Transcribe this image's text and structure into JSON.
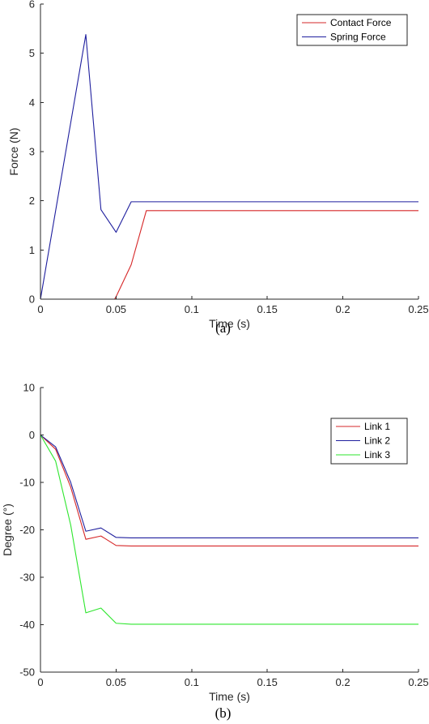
{
  "chart_data": [
    {
      "type": "line",
      "xlabel": "Time (s)",
      "ylabel": "Force (N)",
      "xlim": [
        0,
        0.25
      ],
      "ylim": [
        0,
        6
      ],
      "xticks": [
        0,
        0.05,
        0.1,
        0.15,
        0.2,
        0.25
      ],
      "xtick_labels": [
        "0",
        "0.05",
        "0.1",
        "0.15",
        "0.2",
        "0.25"
      ],
      "yticks": [
        0,
        1,
        2,
        3,
        4,
        5,
        6
      ],
      "ytick_labels": [
        "0",
        "1",
        "2",
        "3",
        "4",
        "5",
        "6"
      ],
      "grid": false,
      "legend": "top-right",
      "caption": "(a)",
      "series": [
        {
          "name": "Contact Force",
          "color": "#d62728",
          "x": [
            0,
            0.049,
            0.05,
            0.06,
            0.07,
            0.08,
            0.1,
            0.15,
            0.2,
            0.25
          ],
          "y": [
            0,
            0,
            0.05,
            0.7,
            1.8,
            1.8,
            1.8,
            1.8,
            1.8,
            1.8
          ]
        },
        {
          "name": "Spring Force",
          "color": "#1f1f9e",
          "x": [
            0,
            0.03,
            0.04,
            0.05,
            0.06,
            0.1,
            0.15,
            0.2,
            0.25
          ],
          "y": [
            0,
            5.38,
            1.82,
            1.36,
            1.98,
            1.98,
            1.98,
            1.98,
            1.98
          ]
        }
      ]
    },
    {
      "type": "line",
      "xlabel": "Time (s)",
      "ylabel": "Degree (°)",
      "xlim": [
        0,
        0.25
      ],
      "ylim": [
        -50,
        10
      ],
      "xticks": [
        0,
        0.05,
        0.1,
        0.15,
        0.2,
        0.25
      ],
      "xtick_labels": [
        "0",
        "0.05",
        "0.1",
        "0.15",
        "0.2",
        "0.25"
      ],
      "yticks": [
        -50,
        -40,
        -30,
        -20,
        -10,
        0,
        10
      ],
      "ytick_labels": [
        "-50",
        "-40",
        "-30",
        "-20",
        "-10",
        "0",
        "10"
      ],
      "grid": false,
      "legend": "top-right",
      "caption": "(b)",
      "series": [
        {
          "name": "Link 1",
          "color": "#d62728",
          "x": [
            0,
            0.01,
            0.02,
            0.03,
            0.04,
            0.05,
            0.06,
            0.1,
            0.15,
            0.2,
            0.25
          ],
          "y": [
            0,
            -3,
            -11,
            -22,
            -21.3,
            -23.3,
            -23.4,
            -23.4,
            -23.4,
            -23.4,
            -23.4
          ]
        },
        {
          "name": "Link 2",
          "color": "#1f1f9e",
          "x": [
            0,
            0.01,
            0.02,
            0.03,
            0.04,
            0.05,
            0.06,
            0.1,
            0.15,
            0.2,
            0.25
          ],
          "y": [
            0,
            -2.5,
            -10,
            -20.3,
            -19.6,
            -21.6,
            -21.7,
            -21.7,
            -21.7,
            -21.7,
            -21.7
          ]
        },
        {
          "name": "Link 3",
          "color": "#2ee62e",
          "x": [
            0,
            0.01,
            0.02,
            0.03,
            0.04,
            0.05,
            0.06,
            0.1,
            0.15,
            0.2,
            0.25
          ],
          "y": [
            0,
            -5.5,
            -19,
            -37.5,
            -36.5,
            -39.7,
            -39.9,
            -39.9,
            -39.9,
            -39.9,
            -39.9
          ]
        }
      ]
    }
  ]
}
